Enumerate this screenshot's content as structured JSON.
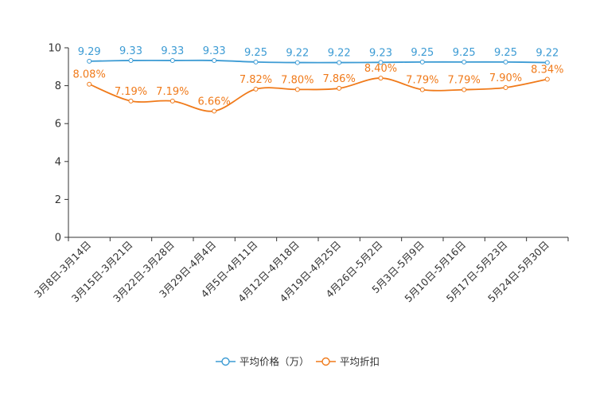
{
  "chart_data": {
    "type": "line",
    "title": "",
    "xlabel": "",
    "ylabel": "",
    "ylim": [
      0,
      10
    ],
    "yticks": [
      0,
      2,
      4,
      6,
      8,
      10
    ],
    "grid": false,
    "legend_position": "bottom",
    "categories": [
      "3月8日-3月14日",
      "3月15日-3月21日",
      "3月22日-3月28日",
      "3月29日-4月4日",
      "4月5日-4月11日",
      "4月12日-4月18日",
      "4月19日-4月25日",
      "4月26日-5月2日",
      "5月3日-5月9日",
      "5月10日-5月16日",
      "5月17日-5月23日",
      "5月24日-5月30日"
    ],
    "series": [
      {
        "name": "平均价格（万）",
        "color": "#3c9bd4",
        "values": [
          9.29,
          9.33,
          9.33,
          9.33,
          9.25,
          9.22,
          9.22,
          9.23,
          9.25,
          9.25,
          9.25,
          9.22
        ],
        "labels": [
          "9.29",
          "9.33",
          "9.33",
          "9.33",
          "9.25",
          "9.22",
          "9.22",
          "9.23",
          "9.25",
          "9.25",
          "9.25",
          "9.22"
        ]
      },
      {
        "name": "平均折扣",
        "color": "#f07a1a",
        "values": [
          8.08,
          7.19,
          7.19,
          6.66,
          7.82,
          7.8,
          7.86,
          8.4,
          7.79,
          7.79,
          7.9,
          8.34
        ],
        "labels": [
          "8.08%",
          "7.19%",
          "7.19%",
          "6.66%",
          "7.82%",
          "7.80%",
          "7.86%",
          "8.40%",
          "7.79%",
          "7.79%",
          "7.90%",
          "8.34%"
        ]
      }
    ]
  }
}
